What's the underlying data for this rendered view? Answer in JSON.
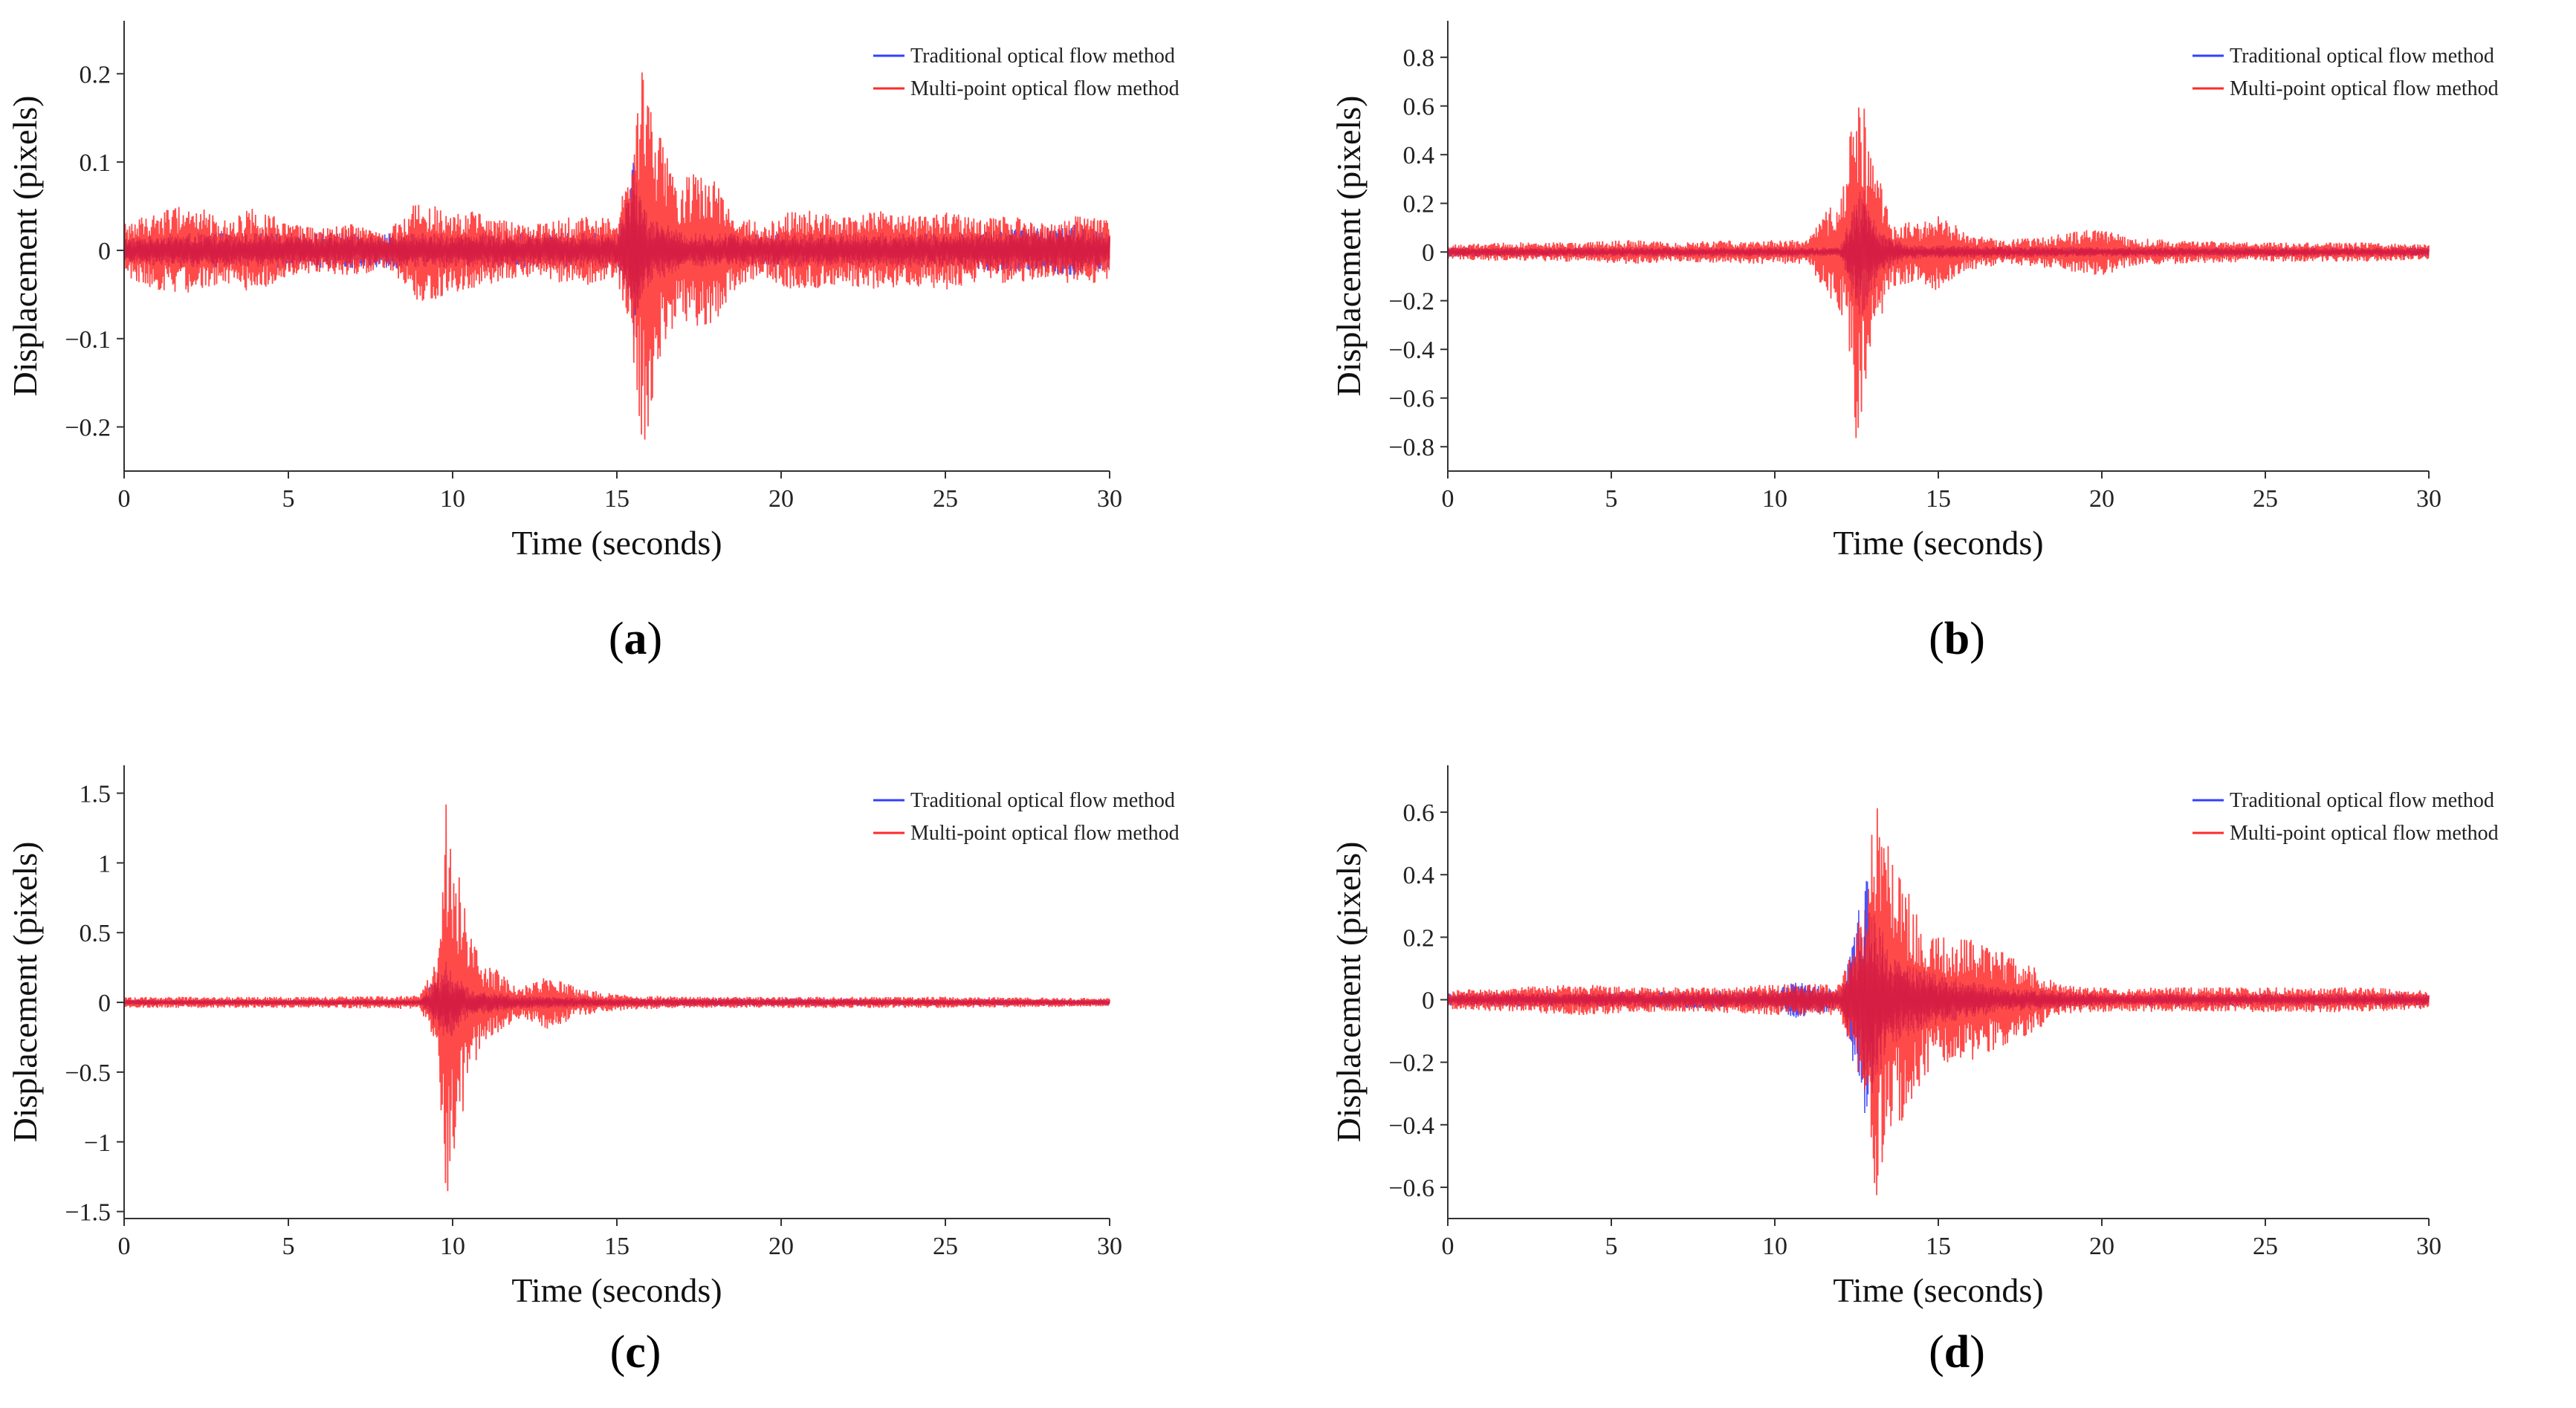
{
  "figure": {
    "colors": {
      "traditional": "#3340ff",
      "multipoint": "#ff2a2a",
      "overlap": "#cc1040",
      "axis": "#333333"
    }
  },
  "chart_data": [
    {
      "id": "a",
      "type": "line",
      "panel_label": "a",
      "xlabel": "Time (seconds)",
      "ylabel": "Displacement (pixels)",
      "xlim": [
        0,
        30
      ],
      "ylim": [
        -0.25,
        0.26
      ],
      "xticks": [
        0,
        5,
        10,
        15,
        20,
        25,
        30
      ],
      "xtick_labels": [
        "0",
        "5",
        "10",
        "15",
        "20",
        "25",
        "30"
      ],
      "yticks": [
        -0.2,
        -0.1,
        0,
        0.1,
        0.2
      ],
      "ytick_labels": [
        "−0.2",
        "−0.1",
        "0",
        "0.1",
        "0.2"
      ],
      "legend": [
        "Traditional optical flow method",
        "Multi-point optical flow method"
      ],
      "legend_position": "top-right",
      "series": [
        {
          "name": "Traditional optical flow method",
          "color": "#3340ff",
          "envelope": [
            [
              0,
              0.015
            ],
            [
              2,
              0.02
            ],
            [
              4,
              0.02
            ],
            [
              8,
              0.02
            ],
            [
              12,
              0.02
            ],
            [
              15,
              0.02
            ],
            [
              15.5,
              0.1
            ],
            [
              16,
              0.04
            ],
            [
              17,
              0.02
            ],
            [
              20,
              0.02
            ],
            [
              25,
              0.02
            ],
            [
              29,
              0.03
            ],
            [
              30,
              0.02
            ]
          ]
        },
        {
          "name": "Multi-point optical flow method",
          "color": "#ff2a2a",
          "envelope": [
            [
              0,
              0.03
            ],
            [
              1,
              0.045
            ],
            [
              2,
              0.055
            ],
            [
              3,
              0.035
            ],
            [
              4,
              0.05
            ],
            [
              5,
              0.03
            ],
            [
              6,
              0.025
            ],
            [
              7,
              0.03
            ],
            [
              8,
              0.02
            ],
            [
              9,
              0.06
            ],
            [
              10,
              0.05
            ],
            [
              11,
              0.04
            ],
            [
              12,
              0.03
            ],
            [
              13,
              0.035
            ],
            [
              14,
              0.04
            ],
            [
              15,
              0.035
            ],
            [
              15.4,
              0.1
            ],
            [
              15.8,
              0.23
            ],
            [
              16.2,
              0.15
            ],
            [
              16.8,
              0.08
            ],
            [
              17.5,
              0.09
            ],
            [
              18,
              0.08
            ],
            [
              18.7,
              0.04
            ],
            [
              19.5,
              0.03
            ],
            [
              20.5,
              0.05
            ],
            [
              21.5,
              0.04
            ],
            [
              22,
              0.04
            ],
            [
              23,
              0.045
            ],
            [
              24,
              0.04
            ],
            [
              25,
              0.045
            ],
            [
              26,
              0.035
            ],
            [
              27,
              0.04
            ],
            [
              28,
              0.03
            ],
            [
              29,
              0.04
            ],
            [
              30,
              0.035
            ]
          ]
        }
      ]
    },
    {
      "id": "b",
      "type": "line",
      "panel_label": "b",
      "xlabel": "Time (seconds)",
      "ylabel": "Displacement (pixels)",
      "xlim": [
        0,
        30
      ],
      "ylim": [
        -0.9,
        0.95
      ],
      "xticks": [
        0,
        5,
        10,
        15,
        20,
        25,
        30
      ],
      "xtick_labels": [
        "0",
        "5",
        "10",
        "15",
        "20",
        "25",
        "30"
      ],
      "yticks": [
        -0.8,
        -0.6,
        -0.4,
        -0.2,
        0,
        0.2,
        0.4,
        0.6,
        0.8
      ],
      "ytick_labels": [
        "−0.8",
        "−0.6",
        "−0.4",
        "−0.2",
        "0",
        "0.2",
        "0.4",
        "0.6",
        "0.8"
      ],
      "legend": [
        "Traditional optical flow method",
        "Multi-point optical flow method"
      ],
      "legend_position": "top-right",
      "series": [
        {
          "name": "Traditional optical flow method",
          "color": "#3340ff",
          "envelope": [
            [
              0,
              0.02
            ],
            [
              7,
              0.02
            ],
            [
              12,
              0.02
            ],
            [
              12.6,
              0.3
            ],
            [
              13.2,
              0.1
            ],
            [
              14,
              0.03
            ],
            [
              20,
              0.02
            ],
            [
              30,
              0.02
            ]
          ]
        },
        {
          "name": "Multi-point optical flow method",
          "color": "#ff2a2a",
          "envelope": [
            [
              0,
              0.03
            ],
            [
              2,
              0.04
            ],
            [
              4,
              0.04
            ],
            [
              5.5,
              0.05
            ],
            [
              7,
              0.04
            ],
            [
              9,
              0.05
            ],
            [
              11,
              0.05
            ],
            [
              12.2,
              0.3
            ],
            [
              12.5,
              0.83
            ],
            [
              12.9,
              0.45
            ],
            [
              13.5,
              0.15
            ],
            [
              14.5,
              0.12
            ],
            [
              15,
              0.18
            ],
            [
              15.8,
              0.08
            ],
            [
              17,
              0.05
            ],
            [
              18,
              0.06
            ],
            [
              19,
              0.08
            ],
            [
              20,
              0.1
            ],
            [
              20.8,
              0.06
            ],
            [
              22,
              0.05
            ],
            [
              25,
              0.04
            ],
            [
              28,
              0.04
            ],
            [
              30,
              0.03
            ]
          ]
        }
      ]
    },
    {
      "id": "c",
      "type": "line",
      "panel_label": "c",
      "xlabel": "Time (seconds)",
      "ylabel": "Displacement (pixels)",
      "xlim": [
        0,
        30
      ],
      "ylim": [
        -1.55,
        1.7
      ],
      "xticks": [
        0,
        5,
        10,
        15,
        20,
        25,
        30
      ],
      "xtick_labels": [
        "0",
        "5",
        "10",
        "15",
        "20",
        "25",
        "30"
      ],
      "yticks": [
        -1.5,
        -1,
        -0.5,
        0,
        0.5,
        1,
        1.5
      ],
      "ytick_labels": [
        "−1.5",
        "−1",
        "−0.5",
        "0",
        "0.5",
        "1",
        "1.5"
      ],
      "legend": [
        "Traditional optical flow method",
        "Multi-point optical flow method"
      ],
      "legend_position": "top-right",
      "series": [
        {
          "name": "Traditional optical flow method",
          "color": "#3340ff",
          "envelope": [
            [
              0,
              0.02
            ],
            [
              9,
              0.02
            ],
            [
              9.8,
              0.3
            ],
            [
              10.5,
              0.1
            ],
            [
              12,
              0.05
            ],
            [
              15,
              0.03
            ],
            [
              30,
              0.02
            ]
          ]
        },
        {
          "name": "Multi-point optical flow method",
          "color": "#ff2a2a",
          "envelope": [
            [
              0,
              0.04
            ],
            [
              3,
              0.04
            ],
            [
              6,
              0.04
            ],
            [
              9,
              0.05
            ],
            [
              9.5,
              0.3
            ],
            [
              9.8,
              1.45
            ],
            [
              10.2,
              0.9
            ],
            [
              10.8,
              0.35
            ],
            [
              11.5,
              0.2
            ],
            [
              12,
              0.12
            ],
            [
              13,
              0.2
            ],
            [
              13.8,
              0.1
            ],
            [
              15,
              0.06
            ],
            [
              17,
              0.04
            ],
            [
              20,
              0.04
            ],
            [
              25,
              0.04
            ],
            [
              30,
              0.03
            ]
          ]
        }
      ]
    },
    {
      "id": "d",
      "type": "line",
      "panel_label": "d",
      "xlabel": "Time (seconds)",
      "ylabel": "Displacement (pixels)",
      "xlim": [
        0,
        30
      ],
      "ylim": [
        -0.7,
        0.75
      ],
      "xticks": [
        0,
        5,
        10,
        15,
        20,
        25,
        30
      ],
      "xtick_labels": [
        "0",
        "5",
        "10",
        "15",
        "20",
        "25",
        "30"
      ],
      "yticks": [
        -0.6,
        -0.4,
        -0.2,
        0,
        0.2,
        0.4,
        0.6
      ],
      "ytick_labels": [
        "−0.6",
        "−0.4",
        "−0.2",
        "0",
        "0.2",
        "0.4",
        "0.6"
      ],
      "legend": [
        "Traditional optical flow method",
        "Multi-point optical flow method"
      ],
      "legend_position": "top-right",
      "series": [
        {
          "name": "Traditional optical flow method",
          "color": "#3340ff",
          "envelope": [
            [
              0,
              0.02
            ],
            [
              10,
              0.03
            ],
            [
              10.6,
              0.06
            ],
            [
              12,
              0.03
            ],
            [
              12.8,
              0.4
            ],
            [
              13.5,
              0.15
            ],
            [
              15,
              0.08
            ],
            [
              17,
              0.04
            ],
            [
              20,
              0.02
            ],
            [
              30,
              0.02
            ]
          ]
        },
        {
          "name": "Multi-point optical flow method",
          "color": "#ff2a2a",
          "envelope": [
            [
              0,
              0.03
            ],
            [
              2,
              0.04
            ],
            [
              4,
              0.05
            ],
            [
              6,
              0.04
            ],
            [
              8,
              0.04
            ],
            [
              10,
              0.05
            ],
            [
              12,
              0.05
            ],
            [
              12.7,
              0.3
            ],
            [
              13.1,
              0.65
            ],
            [
              13.6,
              0.45
            ],
            [
              14.3,
              0.3
            ],
            [
              15,
              0.2
            ],
            [
              16,
              0.2
            ],
            [
              17,
              0.15
            ],
            [
              18,
              0.1
            ],
            [
              18.7,
              0.05
            ],
            [
              19.5,
              0.04
            ],
            [
              22,
              0.04
            ],
            [
              25,
              0.04
            ],
            [
              28,
              0.04
            ],
            [
              30,
              0.03
            ]
          ]
        }
      ]
    }
  ]
}
